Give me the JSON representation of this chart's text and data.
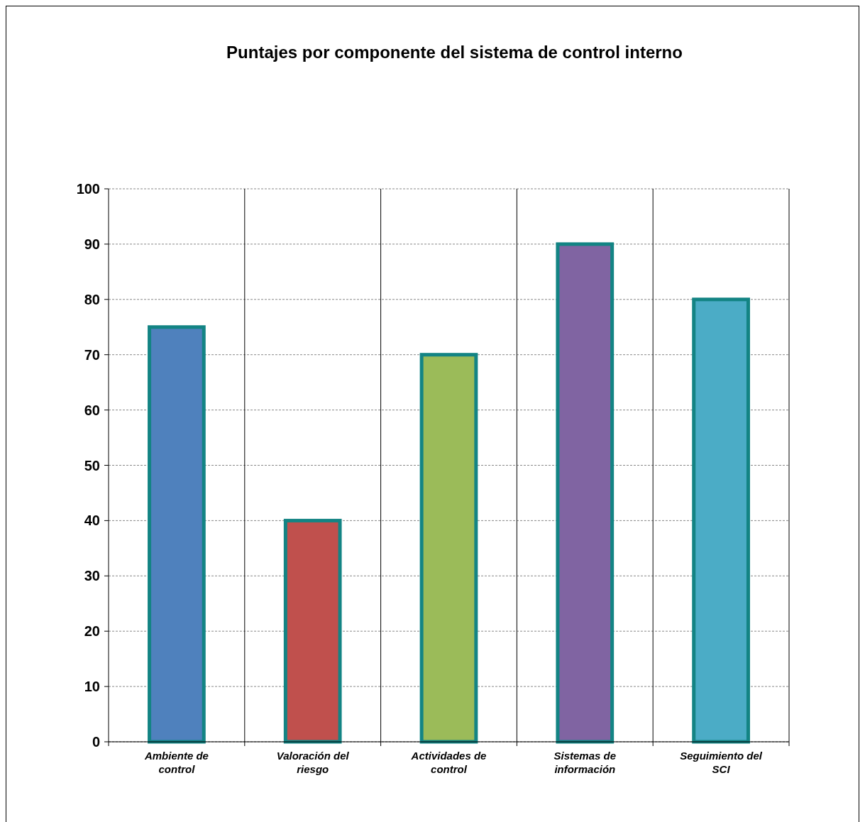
{
  "chart_data": {
    "type": "bar",
    "title": "Puntajes por componente del sistema de control interno",
    "categories": [
      "Ambiente de control",
      "Valoración del riesgo",
      "Actividades de control",
      "Sistemas de información",
      "Seguimiento del SCI"
    ],
    "values": [
      75,
      40,
      70,
      90,
      80
    ],
    "colors": [
      "#4f81bd",
      "#c0504d",
      "#9bbb59",
      "#8064a2",
      "#4bacc6"
    ],
    "ylim": [
      0,
      100
    ],
    "yticks": [
      0,
      10,
      20,
      30,
      40,
      50,
      60,
      70,
      80,
      90,
      100
    ],
    "grid": true
  }
}
